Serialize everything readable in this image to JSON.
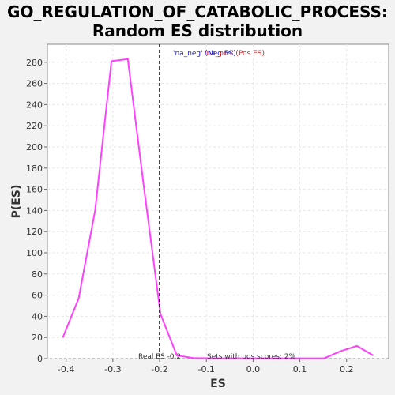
{
  "chart_data": {
    "type": "line",
    "title_line1": "GO_REGULATION_OF_CATABOLIC_PROCESS:",
    "title_line2": "Random ES distribution",
    "xlabel": "ES",
    "ylabel": "P(ES)",
    "xlim": [
      -0.44,
      0.29
    ],
    "ylim": [
      0,
      297
    ],
    "xticks": [
      -0.4,
      -0.3,
      -0.2,
      -0.1,
      0.0,
      0.1,
      0.2
    ],
    "xtick_labels": [
      "-0.4",
      "-0.3",
      "-0.2",
      "-0.1",
      "0.0",
      "0.1",
      "0.2"
    ],
    "yticks": [
      0,
      20,
      40,
      60,
      80,
      100,
      120,
      140,
      160,
      180,
      200,
      220,
      240,
      260,
      280
    ],
    "ytick_labels": [
      "0",
      "20",
      "40",
      "60",
      "80",
      "100",
      "120",
      "140",
      "160",
      "180",
      "200",
      "220",
      "240",
      "260",
      "280"
    ],
    "grid": true,
    "series": [
      {
        "color": "#ff40ff",
        "x": [
          -0.407,
          -0.373,
          -0.338,
          -0.303,
          -0.268,
          -0.233,
          -0.198,
          -0.163,
          -0.128,
          -0.093,
          -0.058,
          -0.023,
          0.012,
          0.047,
          0.082,
          0.117,
          0.152,
          0.187,
          0.222,
          0.257
        ],
        "y": [
          20,
          57,
          140,
          281,
          283,
          160,
          42,
          3,
          0.5,
          0.3,
          0.3,
          0.3,
          0.3,
          0.3,
          0.3,
          0.3,
          0.3,
          7,
          12,
          3
        ]
      }
    ],
    "real_es": -0.2,
    "real_es_label": "Real ES -0.2",
    "pos_scores_label": "Sets with pos scores: 2%",
    "legend_neg": "'na_neg' (Neg ES)",
    "legend_pos": "'na_pos' (Pos ES)",
    "colors": {
      "curve": "#ff40ff",
      "legend_neg": "#2222cc",
      "legend_pos": "#dd2222",
      "grid": "#e6e6e6",
      "real_es_line": "#000000"
    }
  }
}
